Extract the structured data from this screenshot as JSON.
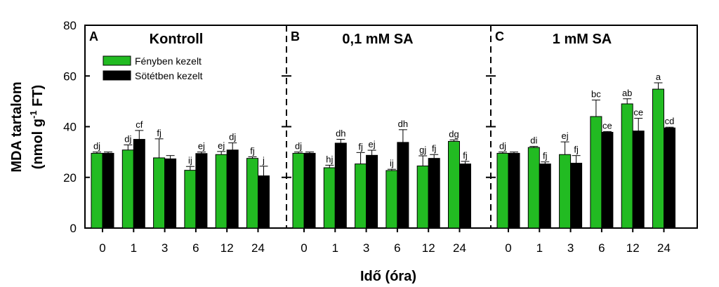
{
  "chart_data": {
    "type": "bar",
    "ylabel_main": "MDA tartalom",
    "ylabel_unit_prefix": "(nmol g",
    "ylabel_unit_sup": "-1",
    "ylabel_unit_suffix": " FT)",
    "xlabel": "Idő (óra)",
    "ylim": [
      0,
      80
    ],
    "yticks": [
      "0",
      "20",
      "40",
      "60",
      "80"
    ],
    "categories": [
      "0",
      "1",
      "3",
      "6",
      "12",
      "24"
    ],
    "legend": {
      "placement": "top-left",
      "entries": [
        "Fényben kezelt",
        "Sötétben kezelt"
      ]
    },
    "colors": {
      "light": "#22bb22",
      "dark": "#000000"
    },
    "panels": [
      {
        "letter": "A",
        "title": "Kontroll",
        "series": [
          {
            "name": "Fényben kezelt",
            "values": [
              29.5,
              30.8,
              27.7,
              22.8,
              29.0,
              27.5
            ],
            "errors": [
              0.5,
              2.0,
              7.5,
              1.5,
              1.2,
              0.6
            ],
            "labels": [
              "dj",
              "dj",
              "fj",
              "ij",
              "ej",
              "fj"
            ]
          },
          {
            "name": "Sötétben kezelt",
            "values": [
              29.5,
              35.0,
              27.3,
              29.4,
              30.8,
              20.6
            ],
            "errors": [
              0.5,
              3.5,
              1.3,
              0.6,
              2.8,
              3.8
            ],
            "labels": [
              "",
              "cf",
              "",
              "ej",
              "dj",
              "j"
            ]
          }
        ]
      },
      {
        "letter": "B",
        "title": "0,1 mM SA",
        "series": [
          {
            "name": "Fényben kezelt",
            "values": [
              29.5,
              23.8,
              25.3,
              22.7,
              24.5,
              34.2
            ],
            "errors": [
              0.5,
              1.0,
              4.5,
              0.5,
              4.0,
              0.6
            ],
            "labels": [
              "dj",
              "hj",
              "fj",
              "ij",
              "gj",
              "dg"
            ]
          },
          {
            "name": "Sötétben kezelt",
            "values": [
              29.5,
              33.5,
              28.7,
              33.8,
              27.5,
              25.3
            ],
            "errors": [
              0.5,
              1.5,
              2.0,
              5.0,
              1.5,
              1.0
            ],
            "labels": [
              "",
              "dh",
              "ej",
              "dh",
              "fj",
              "fj"
            ]
          }
        ]
      },
      {
        "letter": "C",
        "title": "1 mM SA",
        "series": [
          {
            "name": "Fényben kezelt",
            "values": [
              29.5,
              31.8,
              29.0,
              44.0,
              49.0,
              54.8
            ],
            "errors": [
              0.5,
              0.4,
              5.0,
              6.5,
              2.0,
              2.5
            ],
            "labels": [
              "dj",
              "di",
              "ej",
              "bc",
              "ab",
              "a"
            ]
          },
          {
            "name": "Sötétben kezelt",
            "values": [
              29.5,
              25.3,
              25.6,
              37.8,
              38.3,
              39.5
            ],
            "errors": [
              0.5,
              0.8,
              3.0,
              0.3,
              5.0,
              0.3
            ],
            "labels": [
              "",
              "fj",
              "fj",
              "ce",
              "ce",
              "cd"
            ]
          }
        ]
      }
    ]
  }
}
